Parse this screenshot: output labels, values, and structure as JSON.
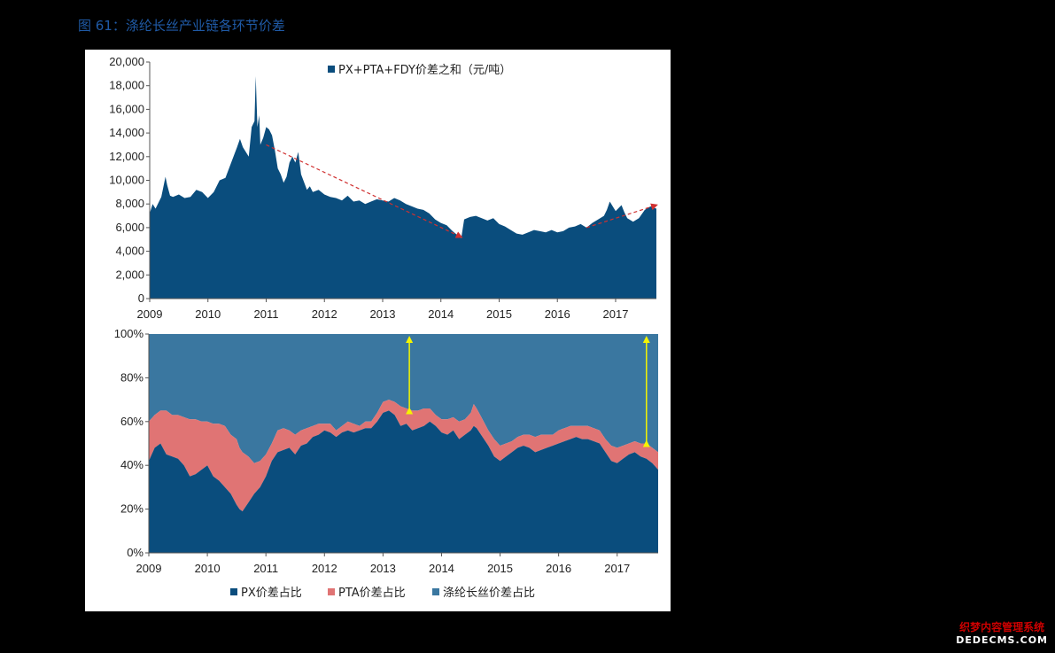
{
  "figure_title": "图 61：涤纶长丝产业链各环节价差",
  "watermark": {
    "line1": "织梦内容管理系统",
    "line2": "DEDECMS.COM"
  },
  "colors": {
    "dark_blue": "#0a4d7d",
    "salmon": "#e07474",
    "steel_blue": "#3a77a0",
    "arrow_red": "#d03030",
    "arrow_yellow": "#f5f500"
  },
  "chart_data": [
    {
      "type": "area",
      "title": "",
      "xlabel": "",
      "ylabel": "",
      "ylim": [
        0,
        20000
      ],
      "xlim": [
        2009,
        2017.7
      ],
      "y_ticks": [
        0,
        2000,
        4000,
        6000,
        8000,
        10000,
        12000,
        14000,
        16000,
        18000,
        20000
      ],
      "y_tick_labels": [
        "0",
        "2,000",
        "4,000",
        "6,000",
        "8,000",
        "10,000",
        "12,000",
        "14,000",
        "16,000",
        "18,000",
        "20,000"
      ],
      "x_tick_labels": [
        "2009",
        "2010",
        "2011",
        "2012",
        "2013",
        "2014",
        "2015",
        "2016",
        "2017"
      ],
      "legend": {
        "position": "top-center",
        "entries": [
          "PX+PTA+FDY价差之和（元/吨）"
        ]
      },
      "grid": false,
      "series": [
        {
          "name": "PX+PTA+FDY价差之和（元/吨）",
          "x": [
            2009.0,
            2009.05,
            2009.1,
            2009.2,
            2009.27,
            2009.3,
            2009.35,
            2009.4,
            2009.5,
            2009.6,
            2009.7,
            2009.8,
            2009.9,
            2010.0,
            2010.1,
            2010.2,
            2010.3,
            2010.4,
            2010.5,
            2010.55,
            2010.6,
            2010.7,
            2010.75,
            2010.8,
            2010.82,
            2010.85,
            2010.88,
            2010.9,
            2010.95,
            2011.0,
            2011.05,
            2011.1,
            2011.15,
            2011.2,
            2011.25,
            2011.3,
            2011.35,
            2011.4,
            2011.45,
            2011.5,
            2011.55,
            2011.6,
            2011.7,
            2011.75,
            2011.8,
            2011.9,
            2012.0,
            2012.1,
            2012.2,
            2012.3,
            2012.4,
            2012.5,
            2012.6,
            2012.7,
            2012.8,
            2012.9,
            2013.0,
            2013.1,
            2013.2,
            2013.3,
            2013.4,
            2013.5,
            2013.6,
            2013.7,
            2013.8,
            2013.9,
            2014.0,
            2014.1,
            2014.2,
            2014.3,
            2014.35,
            2014.4,
            2014.5,
            2014.6,
            2014.7,
            2014.8,
            2014.9,
            2015.0,
            2015.1,
            2015.2,
            2015.3,
            2015.4,
            2015.5,
            2015.6,
            2015.7,
            2015.8,
            2015.9,
            2016.0,
            2016.1,
            2016.2,
            2016.3,
            2016.4,
            2016.5,
            2016.6,
            2016.7,
            2016.8,
            2016.85,
            2016.9,
            2017.0,
            2017.1,
            2017.15,
            2017.2,
            2017.3,
            2017.4,
            2017.5,
            2017.6,
            2017.7
          ],
          "values": [
            7200,
            8000,
            7600,
            8600,
            10300,
            9600,
            8700,
            8600,
            8800,
            8500,
            8600,
            9200,
            9000,
            8500,
            9000,
            10000,
            10200,
            11500,
            12800,
            13500,
            12800,
            12000,
            14500,
            15000,
            18800,
            14500,
            15500,
            13000,
            13600,
            14500,
            14300,
            13800,
            12500,
            11000,
            10500,
            9800,
            10300,
            11500,
            12000,
            11500,
            12400,
            10500,
            9200,
            9500,
            9000,
            9200,
            8800,
            8600,
            8500,
            8300,
            8700,
            8200,
            8300,
            8000,
            8200,
            8400,
            8300,
            8200,
            8500,
            8300,
            8000,
            7800,
            7600,
            7500,
            7200,
            6700,
            6400,
            6200,
            5700,
            5300,
            5100,
            6700,
            6900,
            7000,
            6800,
            6600,
            6800,
            6300,
            6100,
            5800,
            5500,
            5400,
            5600,
            5800,
            5700,
            5600,
            5800,
            5600,
            5700,
            6000,
            6100,
            6300,
            6000,
            6400,
            6700,
            7000,
            7500,
            8200,
            7400,
            7900,
            7300,
            6800,
            6500,
            6800,
            7500,
            7800,
            7600
          ]
        }
      ],
      "annotations": [
        {
          "type": "dashed-arrow",
          "color": "red",
          "from": [
            2011.0,
            13000
          ],
          "to": [
            2014.35,
            5200
          ]
        },
        {
          "type": "dashed-arrow",
          "color": "red",
          "from": [
            2016.5,
            6000
          ],
          "to": [
            2017.7,
            7900
          ]
        }
      ]
    },
    {
      "type": "area",
      "title": "",
      "xlabel": "",
      "ylabel": "",
      "stacked": true,
      "percent": true,
      "ylim": [
        0,
        100
      ],
      "xlim": [
        2009,
        2017.7
      ],
      "y_ticks": [
        0,
        20,
        40,
        60,
        80,
        100
      ],
      "y_tick_labels": [
        "0%",
        "20%",
        "40%",
        "60%",
        "80%",
        "100%"
      ],
      "x_tick_labels": [
        "2009",
        "2010",
        "2011",
        "2012",
        "2013",
        "2014",
        "2015",
        "2016",
        "2017"
      ],
      "legend": {
        "position": "bottom-center",
        "entries": [
          "PX价差占比",
          "PTA价差占比",
          "涤纶长丝价差占比"
        ]
      },
      "grid": false,
      "x": [
        2009.0,
        2009.1,
        2009.2,
        2009.3,
        2009.4,
        2009.5,
        2009.6,
        2009.7,
        2009.8,
        2009.9,
        2010.0,
        2010.1,
        2010.2,
        2010.3,
        2010.4,
        2010.5,
        2010.55,
        2010.6,
        2010.65,
        2010.7,
        2010.8,
        2010.9,
        2011.0,
        2011.1,
        2011.2,
        2011.3,
        2011.4,
        2011.5,
        2011.6,
        2011.7,
        2011.8,
        2011.9,
        2012.0,
        2012.1,
        2012.2,
        2012.3,
        2012.4,
        2012.5,
        2012.6,
        2012.7,
        2012.8,
        2012.9,
        2013.0,
        2013.1,
        2013.2,
        2013.3,
        2013.4,
        2013.5,
        2013.6,
        2013.7,
        2013.8,
        2013.9,
        2014.0,
        2014.1,
        2014.2,
        2014.3,
        2014.4,
        2014.5,
        2014.55,
        2014.6,
        2014.7,
        2014.8,
        2014.9,
        2015.0,
        2015.1,
        2015.2,
        2015.3,
        2015.4,
        2015.5,
        2015.6,
        2015.7,
        2015.8,
        2015.9,
        2016.0,
        2016.1,
        2016.2,
        2016.3,
        2016.4,
        2016.5,
        2016.6,
        2016.7,
        2016.8,
        2016.9,
        2017.0,
        2017.1,
        2017.2,
        2017.3,
        2017.4,
        2017.5,
        2017.6,
        2017.7
      ],
      "series": [
        {
          "name": "PX价差占比",
          "values": [
            42,
            48,
            50,
            45,
            44,
            43,
            40,
            35,
            36,
            38,
            40,
            35,
            33,
            30,
            27,
            22,
            20,
            19,
            21,
            23,
            27,
            30,
            35,
            42,
            46,
            47,
            48,
            45,
            49,
            50,
            53,
            54,
            56,
            55,
            53,
            55,
            56,
            55,
            56,
            57,
            57,
            60,
            64,
            65,
            63,
            58,
            59,
            56,
            57,
            58,
            60,
            58,
            55,
            54,
            56,
            52,
            54,
            56,
            58,
            57,
            53,
            49,
            44,
            42,
            44,
            46,
            48,
            49,
            48,
            46,
            47,
            48,
            49,
            50,
            51,
            52,
            53,
            52,
            52,
            51,
            50,
            46,
            42,
            41,
            43,
            45,
            46,
            44,
            43,
            41,
            38
          ]
        },
        {
          "name": "PTA价差占比",
          "values": [
            18,
            15,
            15,
            20,
            19,
            20,
            22,
            26,
            25,
            22,
            20,
            24,
            26,
            28,
            27,
            30,
            28,
            27,
            24,
            21,
            14,
            12,
            10,
            8,
            10,
            10,
            8,
            9,
            7,
            7,
            5,
            5,
            3,
            4,
            3,
            3,
            4,
            4,
            2,
            3,
            3,
            4,
            5,
            5,
            6,
            9,
            7,
            9,
            8,
            8,
            6,
            5,
            6,
            7,
            6,
            8,
            7,
            8,
            10,
            9,
            8,
            7,
            8,
            7,
            6,
            5,
            5,
            5,
            6,
            7,
            7,
            6,
            5,
            6,
            6,
            6,
            5,
            6,
            6,
            6,
            6,
            6,
            7,
            7,
            6,
            5,
            5,
            6,
            7,
            7,
            8
          ]
        },
        {
          "name": "涤纶长丝价差占比",
          "values": [
            40,
            37,
            35,
            35,
            37,
            37,
            38,
            39,
            39,
            40,
            40,
            41,
            41,
            42,
            46,
            48,
            52,
            54,
            55,
            56,
            59,
            58,
            55,
            50,
            44,
            43,
            44,
            46,
            44,
            43,
            42,
            41,
            41,
            41,
            44,
            42,
            40,
            41,
            42,
            40,
            40,
            36,
            31,
            30,
            31,
            33,
            34,
            35,
            35,
            34,
            34,
            37,
            39,
            39,
            38,
            40,
            39,
            36,
            32,
            34,
            39,
            44,
            48,
            51,
            50,
            49,
            47,
            46,
            46,
            47,
            46,
            46,
            46,
            44,
            43,
            42,
            42,
            42,
            42,
            43,
            44,
            48,
            51,
            52,
            51,
            50,
            49,
            50,
            50,
            52,
            54
          ]
        }
      ],
      "annotations": [
        {
          "type": "double-arrow",
          "color": "yellow",
          "x": 2013.45,
          "from": 65,
          "to": 100
        },
        {
          "type": "double-arrow",
          "color": "yellow",
          "x": 2017.5,
          "from": 50,
          "to": 100
        }
      ]
    }
  ]
}
